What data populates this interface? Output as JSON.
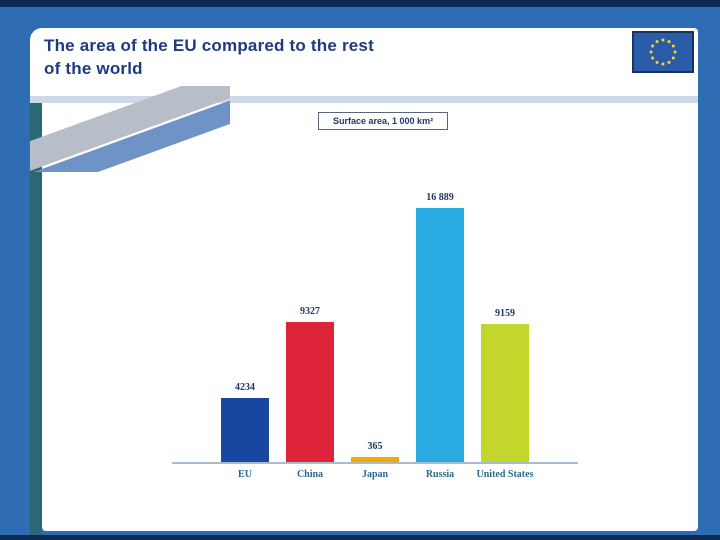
{
  "slide": {
    "title_line1": "The area of the EU compared to the rest",
    "title_line2": "of the world"
  },
  "chart_data": {
    "type": "bar",
    "title": "Surface area, 1 000 km²",
    "categories": [
      "EU",
      "China",
      "Japan",
      "Russia",
      "United States"
    ],
    "values": [
      4234,
      9327,
      365,
      16889,
      9159
    ],
    "value_labels": [
      "4234",
      "9327",
      "365",
      "16 889",
      "9159"
    ],
    "bar_colors": [
      "#17479e",
      "#dd2438",
      "#f5a800",
      "#29abe2",
      "#c3d62b"
    ],
    "xlabel": "",
    "ylabel": "Surface area, 1 000 km²",
    "ylim": [
      0,
      17000
    ],
    "grid": false,
    "legend": "none"
  },
  "colors": {
    "frame_blue": "#2e6db4",
    "dark_navy_strip": "#0d2b52",
    "teal_rail": "#2a6876",
    "title_text": "#1e3a80",
    "value_text": "#1f3864",
    "category_text": "#2c6a8f",
    "flag_blue": "#2a5caa",
    "flag_star_yellow": "#ffd617"
  }
}
